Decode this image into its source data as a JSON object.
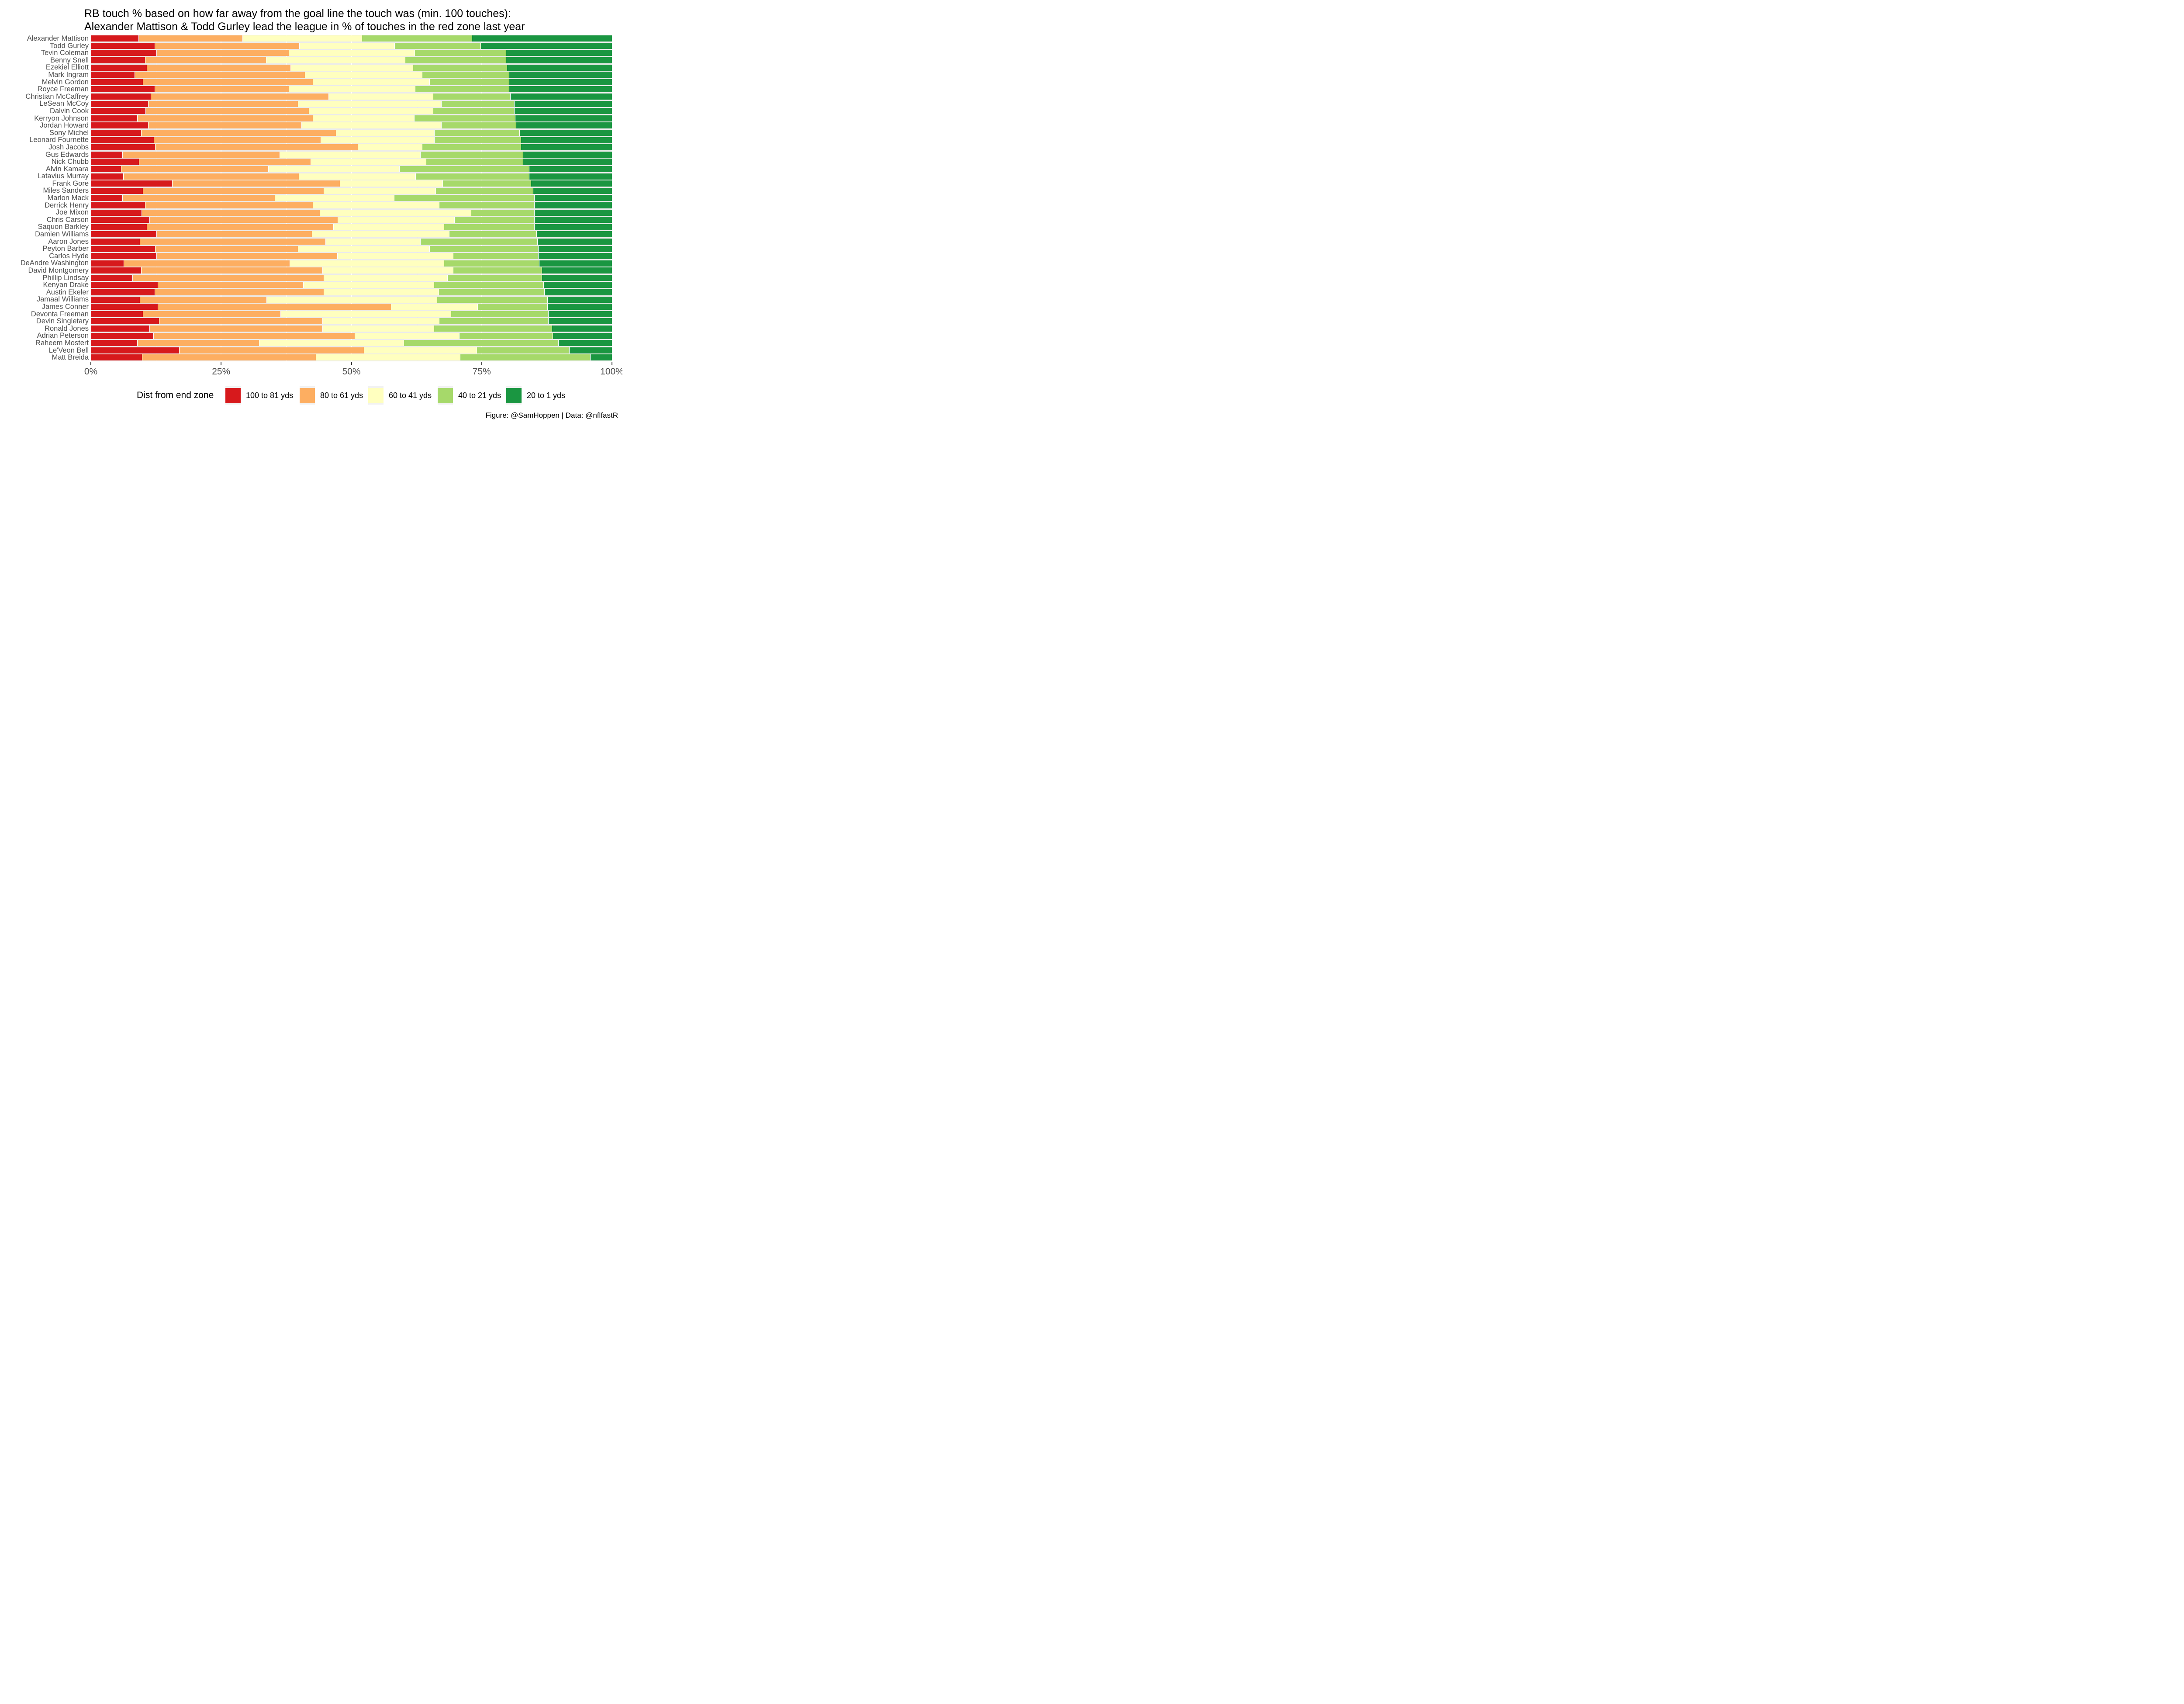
{
  "title": {
    "line1": "RB touch % based on how far away from the goal line the touch was (min. 100 touches):",
    "line2": "Alexander Mattison & Todd Gurley lead the league in % of touches in the red zone last year"
  },
  "footer": "Figure: @SamHoppen | Data: @nflfastR",
  "legend": {
    "title": "Dist from end zone",
    "items": [
      {
        "label": "100 to 81 yds",
        "color": "#d7191c"
      },
      {
        "label": "80 to 61 yds",
        "color": "#fdae61"
      },
      {
        "label": "60 to 41 yds",
        "color": "#ffffbf"
      },
      {
        "label": "40 to 21 yds",
        "color": "#a6d96a"
      },
      {
        "label": "20 to 1 yds",
        "color": "#1a9641"
      }
    ]
  },
  "colors": {
    "panel_background": "#ebebeb",
    "gridline": "#ffffff",
    "axis_text": "#4d4d4d",
    "tick_mark": "#333333",
    "red": "#d7191c",
    "orange": "#fdae61",
    "yellow": "#ffffbf",
    "light_green": "#a6d96a",
    "dark_green": "#1a9641"
  },
  "x_axis": {
    "tick_labels": [
      "0%",
      "25%",
      "50%",
      "75%",
      "100%"
    ],
    "tick_values": [
      0,
      25,
      50,
      75,
      100
    ],
    "minor_gridlines": [
      12.5,
      37.5,
      62.5,
      87.5
    ]
  },
  "chart_data": {
    "type": "bar",
    "orientation": "horizontal",
    "stacked": true,
    "unit": "percent of touches",
    "xlim": [
      0,
      100
    ],
    "grid": true,
    "legend_position": "bottom",
    "categories": [
      "Alexander Mattison",
      "Todd Gurley",
      "Tevin Coleman",
      "Benny Snell",
      "Ezekiel Elliott",
      "Mark Ingram",
      "Melvin Gordon",
      "Royce Freeman",
      "Christian McCaffrey",
      "LeSean McCoy",
      "Dalvin Cook",
      "Kerryon Johnson",
      "Jordan Howard",
      "Sony Michel",
      "Leonard Fournette",
      "Josh Jacobs",
      "Gus Edwards",
      "Nick Chubb",
      "Alvin Kamara",
      "Latavius Murray",
      "Frank Gore",
      "Miles Sanders",
      "Marlon Mack",
      "Derrick Henry",
      "Joe Mixon",
      "Chris Carson",
      "Saquon Barkley",
      "Damien Williams",
      "Aaron Jones",
      "Peyton Barber",
      "Carlos Hyde",
      "DeAndre Washington",
      "David Montgomery",
      "Phillip Lindsay",
      "Kenyan Drake",
      "Austin Ekeler",
      "Jamaal Williams",
      "James Conner",
      "Devonta Freeman",
      "Devin Singletary",
      "Ronald Jones",
      "Adrian Peterson",
      "Raheem Mostert",
      "Le'Veon Bell",
      "Matt Breida"
    ],
    "series": [
      {
        "key": "100-81",
        "name": "100 to 81 yds",
        "color": "#d7191c",
        "values": [
          9.1,
          12.2,
          12.6,
          10.4,
          10.7,
          8.4,
          10.0,
          12.2,
          11.5,
          11.0,
          10.5,
          8.9,
          11.0,
          9.6,
          12.1,
          12.3,
          6.0,
          9.2,
          5.8,
          6.2,
          15.6,
          10.0,
          6.0,
          10.4,
          9.7,
          11.2,
          10.7,
          12.6,
          9.4,
          12.3,
          12.6,
          6.3,
          9.6,
          8.0,
          12.8,
          12.2,
          9.4,
          12.8,
          10.0,
          13.1,
          11.2,
          12.0,
          8.9,
          16.9,
          9.8
        ]
      },
      {
        "key": "80-61",
        "name": "80 to 61 yds",
        "color": "#fdae61",
        "values": [
          20.0,
          27.8,
          25.4,
          23.2,
          27.6,
          32.7,
          32.6,
          25.8,
          34.1,
          28.7,
          31.3,
          33.7,
          29.4,
          37.4,
          32.0,
          38.9,
          30.2,
          33.0,
          28.2,
          33.7,
          32.2,
          34.7,
          29.3,
          32.2,
          34.2,
          36.2,
          35.8,
          29.8,
          35.6,
          27.4,
          34.7,
          31.8,
          34.8,
          36.7,
          27.9,
          32.5,
          24.3,
          44.8,
          26.4,
          31.3,
          33.2,
          38.6,
          23.4,
          35.5,
          33.4
        ]
      },
      {
        "key": "60-41",
        "name": "60 to 41 yds",
        "color": "#ffffbf",
        "values": [
          22.9,
          18.3,
          24.1,
          26.7,
          23.5,
          22.4,
          22.4,
          24.2,
          20.0,
          27.5,
          23.8,
          19.4,
          26.8,
          18.9,
          21.8,
          12.3,
          27.0,
          22.1,
          25.2,
          22.4,
          19.7,
          21.4,
          22.9,
          24.2,
          29.0,
          22.3,
          21.2,
          26.3,
          18.2,
          25.3,
          22.2,
          29.6,
          25.1,
          23.7,
          25.1,
          22.0,
          32.7,
          16.6,
          32.7,
          22.4,
          21.4,
          20.1,
          27.7,
          21.6,
          27.6
        ]
      },
      {
        "key": "40-21",
        "name": "40 to 21 yds",
        "color": "#a6d96a",
        "values": [
          21.1,
          16.5,
          17.5,
          19.3,
          18.0,
          16.7,
          15.2,
          18.0,
          14.9,
          14.0,
          15.6,
          19.4,
          14.4,
          16.3,
          16.6,
          19.0,
          19.7,
          18.6,
          24.9,
          21.8,
          16.9,
          18.7,
          26.9,
          18.3,
          12.2,
          15.4,
          17.4,
          16.8,
          22.5,
          20.8,
          16.3,
          18.3,
          17.0,
          18.1,
          21.0,
          20.3,
          21.2,
          13.4,
          18.7,
          21.0,
          22.6,
          17.9,
          29.7,
          17.8,
          25.0
        ]
      },
      {
        "key": "20-1",
        "name": "20 to 1 yds",
        "color": "#1a9641",
        "values": [
          26.9,
          25.2,
          20.4,
          20.4,
          20.2,
          19.8,
          19.8,
          19.8,
          19.5,
          18.8,
          18.8,
          18.6,
          18.4,
          17.8,
          17.5,
          17.5,
          17.1,
          17.1,
          15.9,
          15.9,
          15.6,
          15.2,
          14.9,
          14.9,
          14.9,
          14.9,
          14.9,
          14.5,
          14.3,
          14.2,
          14.2,
          14.0,
          13.5,
          13.5,
          13.2,
          13.0,
          12.4,
          12.4,
          12.2,
          12.2,
          11.6,
          11.4,
          10.3,
          8.2,
          4.2
        ]
      }
    ]
  }
}
